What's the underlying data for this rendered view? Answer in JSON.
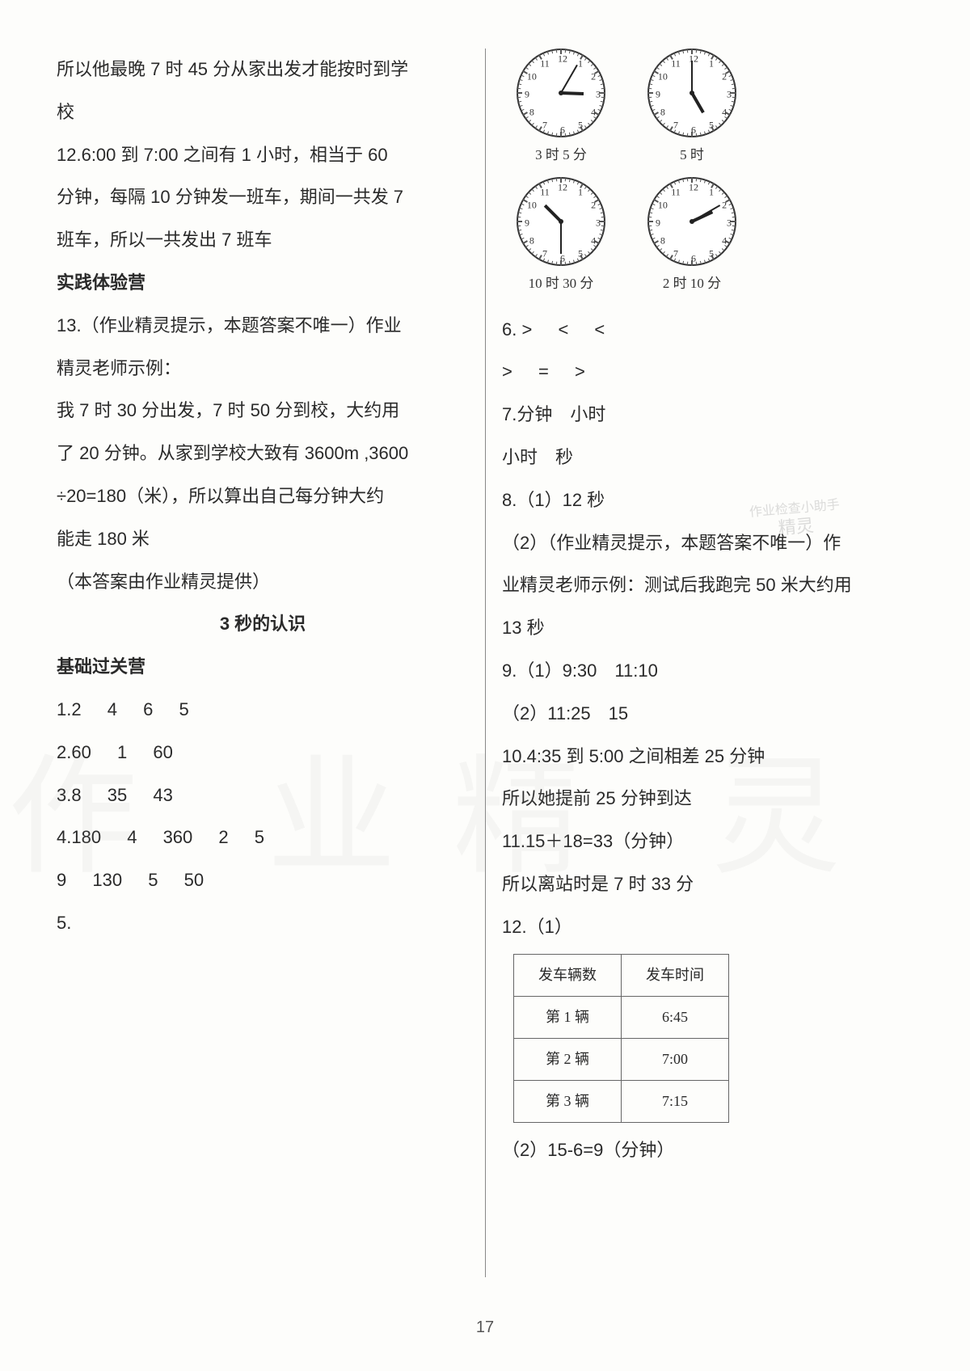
{
  "left": {
    "p1a": "所以他最晚 7 时 45 分从家出发才能按时到学",
    "p1b": "校",
    "p2a": "12.6:00 到 7:00 之间有 1 小时，相当于 60",
    "p2b": "分钟，每隔 10 分钟发一班车，期间一共发 7",
    "p2c": "班车，所以一共发出 7 班车",
    "h1": "实践体验营",
    "p3a": "13.（作业精灵提示，本题答案不唯一）作业",
    "p3b": "精灵老师示例：",
    "p4a": "我 7 时 30 分出发，7 时 50 分到校，大约用",
    "p4b": "了 20 分钟。从家到学校大致有 3600m ,3600",
    "p4c": "÷20=180（米），所以算出自己每分钟大约",
    "p4d": "能走 180 米",
    "p5": "（本答案由作业精灵提供）",
    "h2": "3  秒的认识",
    "h3": "基础过关营",
    "r1": [
      "1.2",
      "4",
      "6",
      "5"
    ],
    "r2": [
      "2.60",
      "1",
      "60"
    ],
    "r3": [
      "3.8",
      "35",
      "43"
    ],
    "r4": [
      "4.180",
      "4",
      "360",
      "2",
      "5"
    ],
    "r5": [
      "9",
      "130",
      "5",
      "50"
    ],
    "r6": "5."
  },
  "right": {
    "clocks": [
      {
        "label": "3 时 5 分",
        "hour_angle": 92,
        "min_angle": 30
      },
      {
        "label": "5 时",
        "hour_angle": 150,
        "min_angle": 0
      },
      {
        "label": "10 时 30 分",
        "hour_angle": 315,
        "min_angle": 180
      },
      {
        "label": "2 时 10 分",
        "hour_angle": 65,
        "min_angle": 60
      }
    ],
    "p6a": [
      "6. >",
      "<",
      "<"
    ],
    "p6b": [
      ">",
      "=",
      ">"
    ],
    "p7a": "7.分钟　小时",
    "p7b": "小时　秒",
    "p8": "8.（1）12 秒",
    "p8b1": "（2）（作业精灵提示，本题答案不唯一）作",
    "p8b2": "业精灵老师示例：测试后我跑完 50 米大约用",
    "p8b3": "13 秒",
    "p9a": "9.（1）9:30　11:10",
    "p9b": "（2）11:25　15",
    "p10a": "10.4:35 到 5:00 之间相差 25 分钟",
    "p10b": "所以她提前 25 分钟到达",
    "p11a": "11.15＋18=33（分钟）",
    "p11b": "所以离站时是 7 时 33 分",
    "p12": "12.（1）",
    "table": {
      "headers": [
        "发车辆数",
        "发车时间"
      ],
      "rows": [
        [
          "第 1 辆",
          "6:45"
        ],
        [
          "第 2 辆",
          "7:00"
        ],
        [
          "第 3 辆",
          "7:15"
        ]
      ]
    },
    "p12b": "（2）15-6=9（分钟）"
  },
  "page_number": "17",
  "watermark_left": "作 业",
  "watermark_right": "精 灵",
  "stamp_l1": "作业检查小助手",
  "stamp_l2": "精灵"
}
